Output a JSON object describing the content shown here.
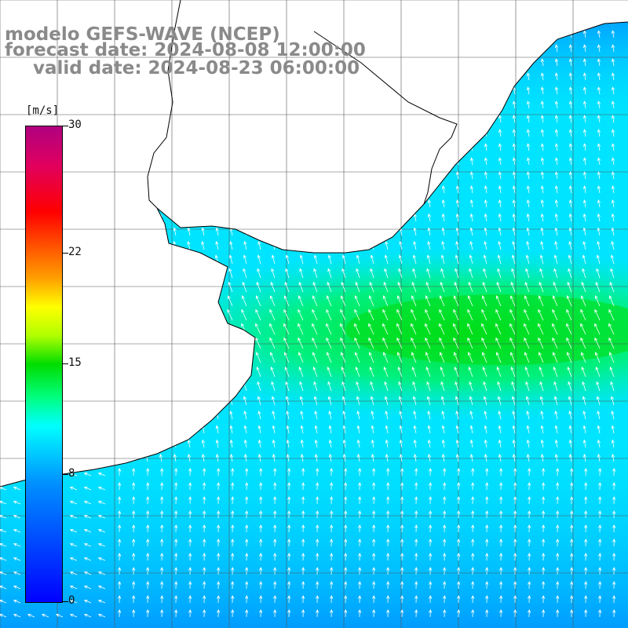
{
  "title": {
    "line1": "modelo GEFS-WAVE (NCEP)",
    "line2": "forecast date: 2024-08-08 12:00:00",
    "line3": "valid date: 2024-08-23 06:00:00"
  },
  "colorbar": {
    "unit": "[m/s]",
    "min": 0,
    "max": 30,
    "ticks": [
      "30",
      "22",
      "15",
      "8",
      "0"
    ],
    "colors": [
      "#0000ff",
      "#0090ff",
      "#00ffff",
      "#00dd00",
      "#ffff00",
      "#ff0000",
      "#b00080"
    ]
  },
  "map": {
    "variable": "wind speed",
    "ocean_color": "#00e8ff",
    "land_color": "#ffffff",
    "grid": true,
    "arrow_color": "#ffffff",
    "coastline_color": "#000000"
  }
}
